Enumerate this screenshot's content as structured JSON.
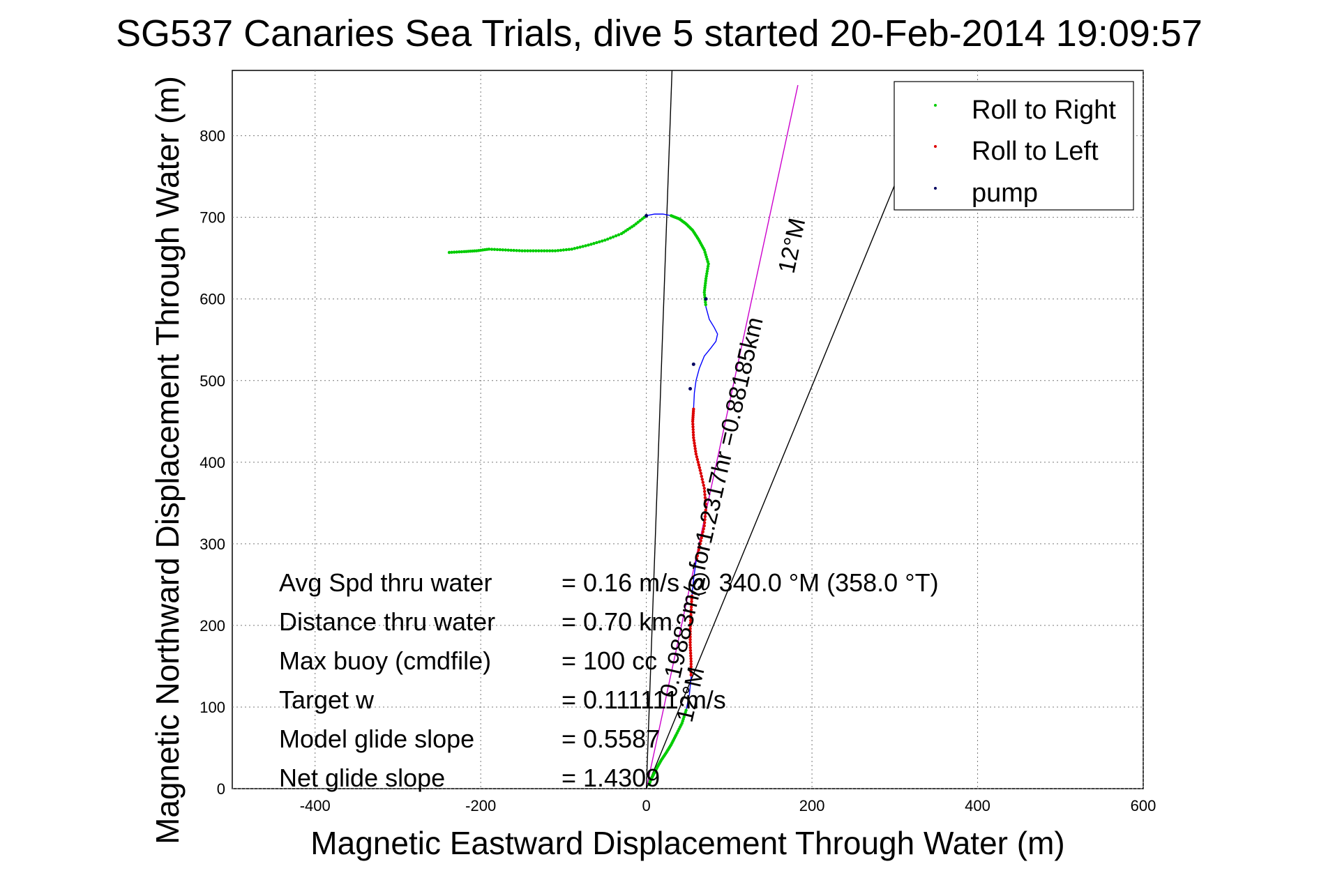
{
  "chart_data": {
    "type": "line",
    "title": "SG537 Canaries Sea Trials, dive 5 started 20-Feb-2014 19:09:57",
    "title_overlap_glyph": "8",
    "xlabel": "Magnetic Eastward Displacement Through Water (m)",
    "ylabel": "Magnetic Northward Displacement Through Water (m)",
    "xlim": [
      -500,
      600
    ],
    "ylim": [
      0,
      880
    ],
    "xticks": [
      -400,
      -200,
      0,
      200,
      400,
      600
    ],
    "yticks": [
      0,
      100,
      200,
      300,
      400,
      500,
      600,
      700,
      800
    ],
    "grid": true,
    "legend_position": "top-right",
    "colors": {
      "track": "#0000ff",
      "roll_right": "#00cc00",
      "roll_left": "#dd0000",
      "pump": "#000060",
      "heading_line": "#cc00cc",
      "reference_line": "#000000"
    },
    "legend": [
      {
        "label": "Roll to Right",
        "color": "#00cc00"
      },
      {
        "label": "Roll to Left",
        "color": "#dd0000"
      },
      {
        "label": "pump",
        "color": "#000060"
      }
    ],
    "track": {
      "x": [
        -238,
        -220,
        -205,
        -190,
        -170,
        -150,
        -130,
        -110,
        -90,
        -70,
        -50,
        -30,
        -15,
        0,
        10,
        20,
        30,
        40,
        48,
        56,
        63,
        70,
        75,
        72,
        70,
        72,
        76,
        82,
        86,
        84,
        78,
        70,
        64,
        60,
        58,
        57,
        56,
        57,
        60,
        65,
        70,
        72,
        70,
        65,
        60,
        57,
        55,
        54,
        53,
        53,
        54,
        54,
        52,
        48,
        43,
        36,
        30,
        24,
        18,
        13,
        9,
        5,
        3
      ],
      "y": [
        657,
        658,
        659,
        661,
        660,
        659,
        659,
        659,
        661,
        666,
        672,
        680,
        690,
        702,
        704,
        704,
        702,
        698,
        692,
        684,
        673,
        660,
        643,
        625,
        608,
        590,
        575,
        565,
        557,
        548,
        540,
        530,
        515,
        500,
        485,
        465,
        450,
        430,
        410,
        390,
        368,
        345,
        322,
        300,
        278,
        256,
        236,
        216,
        196,
        176,
        156,
        136,
        116,
        96,
        80,
        66,
        54,
        44,
        35,
        26,
        18,
        10,
        4
      ],
      "roll_right_segments": [
        [
          -238,
          -170
        ],
        [
          -150,
          -70
        ],
        [
          -50,
          0
        ],
        [
          40,
          70
        ],
        [
          70,
          72
        ],
        [
          10,
          40
        ]
      ],
      "roll_left_segments": [
        [
          54,
          70
        ],
        [
          53,
          55
        ]
      ]
    },
    "reference_lines": [
      {
        "label": "12°M",
        "from": [
          0,
          0
        ],
        "to": [
          183,
          862
        ],
        "color": "#cc00cc"
      },
      {
        "label": "",
        "from": [
          0,
          0
        ],
        "to": [
          31,
          880
        ],
        "color": "#000000"
      },
      {
        "label": "",
        "from": [
          0,
          0
        ],
        "to": [
          300,
          740
        ],
        "color": "#000000"
      }
    ],
    "annotations": [
      {
        "text": "12°M",
        "at": [
          178,
          630
        ],
        "rotation": -78
      },
      {
        "text": "0.19883m/s for1.2317hr =0.88185km",
        "at": [
          35,
          110
        ],
        "rotation": -77
      },
      {
        "text": "12°M",
        "at": [
          55,
          80
        ],
        "rotation": -77
      }
    ],
    "stats": [
      {
        "label": "Avg Spd thru water",
        "value": "=  0.16 m/s @  340.0 °M (358.0 °T)"
      },
      {
        "label": "Distance thru water",
        "value": "=  0.70 km"
      },
      {
        "label": "Max buoy (cmdfile)",
        "value": "= 100 cc"
      },
      {
        "label": "Target w",
        "value": "= 0.111111 m/s"
      },
      {
        "label": "Model glide slope",
        "value": "= 0.5587"
      },
      {
        "label": "Net glide slope",
        "value": "= 1.4309"
      }
    ]
  }
}
